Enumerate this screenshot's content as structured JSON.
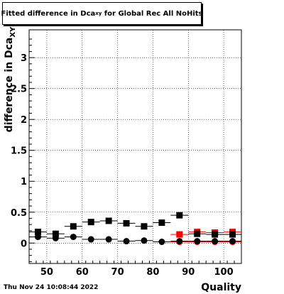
{
  "chart_data": {
    "type": "scatter",
    "title_main": "Fitted difference in Dca",
    "title_sub": "xy",
    "title_rest": " for Global Rec All NoHits",
    "ylabel_main": "difference in Dca",
    "ylabel_sub": "XY",
    "xlabel": "Quality",
    "datestamp": "Thu Nov 24 10:08:44 2022",
    "xlim": [
      45,
      105
    ],
    "ylim": [
      -0.33,
      3.45
    ],
    "xticks": [
      50,
      60,
      70,
      80,
      90,
      100
    ],
    "xtick_labels": [
      "50",
      "60",
      "70",
      "80",
      "90",
      "100"
    ],
    "yticks": [
      0,
      0.5,
      1,
      1.5,
      2,
      2.5,
      3
    ],
    "ytick_labels": [
      "0",
      "0.5",
      "1",
      "1.5",
      "2",
      "2.5",
      "3"
    ],
    "grid": true,
    "x_halfwidth": 2.5,
    "series": [
      {
        "color": "#000000",
        "marker": "square",
        "x": [
          47.5,
          52.5,
          57.5,
          62.5,
          67.5,
          72.5,
          77.5,
          82.5,
          87.5
        ],
        "y": [
          0.18,
          0.15,
          0.27,
          0.34,
          0.36,
          0.32,
          0.27,
          0.33,
          0.45
        ]
      },
      {
        "color": "#000000",
        "marker": "circle",
        "x": [
          47.5,
          52.5,
          57.5,
          62.5,
          67.5,
          72.5,
          77.5,
          82.5
        ],
        "y": [
          0.1,
          0.08,
          0.1,
          0.06,
          0.06,
          0.03,
          0.04,
          0.02
        ]
      },
      {
        "color": "#ff0000",
        "marker": "square",
        "x": [
          87.5,
          92.5,
          97.5,
          102.5
        ],
        "y": [
          0.14,
          0.18,
          0.17,
          0.18
        ]
      },
      {
        "color": "#ff0000",
        "marker": "circle",
        "x": [
          87.5,
          92.5,
          97.5,
          102.5
        ],
        "y": [
          0.02,
          0.02,
          0.02,
          0.02
        ]
      },
      {
        "color": "#000000",
        "marker": "square",
        "x": [
          92.5,
          97.5,
          102.5
        ],
        "y": [
          0.15,
          0.14,
          0.14
        ]
      },
      {
        "color": "#000000",
        "marker": "circle",
        "x": [
          87.5,
          92.5,
          97.5,
          102.5
        ],
        "y": [
          0.03,
          0.03,
          0.03,
          0.03
        ]
      }
    ]
  }
}
